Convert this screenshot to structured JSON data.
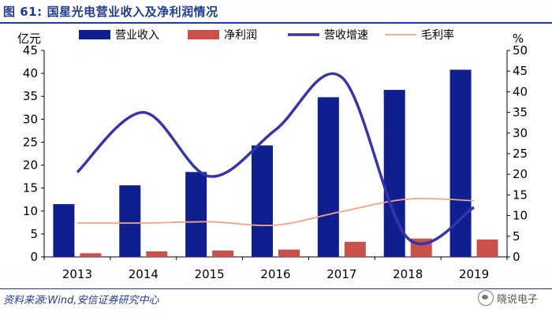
{
  "figure": {
    "label": "图 61:",
    "title": "国星光电营业收入及净利润情况"
  },
  "source": "资料来源:Wind,安信证券研究中心",
  "watermark": {
    "icon": "wechat-icon",
    "text": "晓说电子"
  },
  "colors": {
    "title": "#1f3a93",
    "revenue": "#0f1f8f",
    "net_profit": "#c9504b",
    "growth": "#3535a8",
    "gross_margin": "#f2a57f"
  },
  "chart_data": {
    "type": "bar",
    "categories": [
      "2013",
      "2014",
      "2015",
      "2016",
      "2017",
      "2018",
      "2019"
    ],
    "y_left": {
      "unit": "亿元",
      "range": [
        0,
        45
      ],
      "ticks": [
        "0",
        "5",
        "10",
        "15",
        "20",
        "25",
        "30",
        "35",
        "40",
        "45"
      ]
    },
    "y_right": {
      "unit": "%",
      "range": [
        0,
        50
      ],
      "ticks": [
        "0",
        "5",
        "10",
        "15",
        "20",
        "25",
        "30",
        "35",
        "40",
        "45",
        "50"
      ]
    },
    "series": [
      {
        "name": "营业收入",
        "kind": "bar",
        "axis": "left",
        "values": [
          11.5,
          15.6,
          18.5,
          24.3,
          34.8,
          36.4,
          40.8
        ]
      },
      {
        "name": "净利润",
        "kind": "bar",
        "axis": "left",
        "values": [
          0.8,
          1.2,
          1.4,
          1.6,
          3.3,
          4.0,
          3.8
        ]
      },
      {
        "name": "营收增速",
        "kind": "line",
        "smooth": true,
        "axis": "right",
        "values": [
          20.5,
          35.0,
          19.5,
          30.8,
          43.5,
          4.5,
          12.0
        ]
      },
      {
        "name": "毛利率",
        "kind": "line",
        "smooth": true,
        "axis": "right",
        "values": [
          8.2,
          8.2,
          8.5,
          7.7,
          11.0,
          14.0,
          13.6
        ]
      }
    ],
    "legend_position": "top",
    "grid": false
  }
}
